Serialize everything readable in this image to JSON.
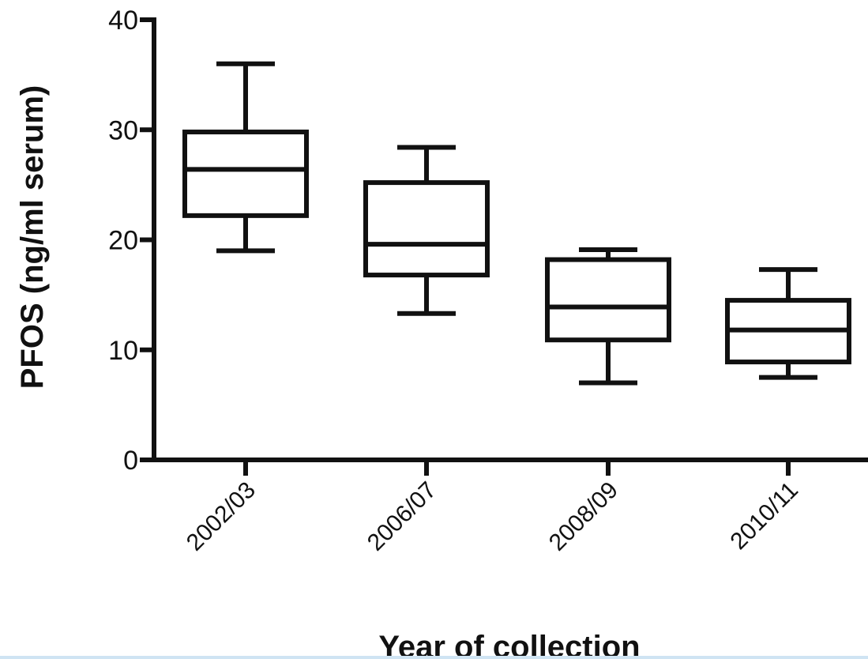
{
  "chart_data": {
    "type": "box",
    "title": "",
    "xlabel": "Year of collection",
    "ylabel": "PFOS (ng/ml serum)",
    "ylim": [
      0,
      40
    ],
    "yticks": [
      0,
      10,
      20,
      30,
      40
    ],
    "categories": [
      "2002/03",
      "2006/07",
      "2008/09",
      "2010/11"
    ],
    "boxes": [
      {
        "category": "2002/03",
        "whisker_low": 19,
        "q1": 22.2,
        "median": 26.4,
        "q3": 29.8,
        "whisker_high": 36
      },
      {
        "category": "2006/07",
        "whisker_low": 13.3,
        "q1": 16.8,
        "median": 19.6,
        "q3": 25.2,
        "whisker_high": 28.4
      },
      {
        "category": "2008/09",
        "whisker_low": 7,
        "q1": 10.9,
        "median": 13.9,
        "q3": 18.2,
        "whisker_high": 19.1
      },
      {
        "category": "2010/11",
        "whisker_low": 7.5,
        "q1": 8.9,
        "median": 11.8,
        "q3": 14.5,
        "whisker_high": 17.3
      }
    ],
    "grid": false,
    "legend": "none",
    "colors": {
      "stroke": "#111111",
      "fill": "#ffffff"
    }
  }
}
